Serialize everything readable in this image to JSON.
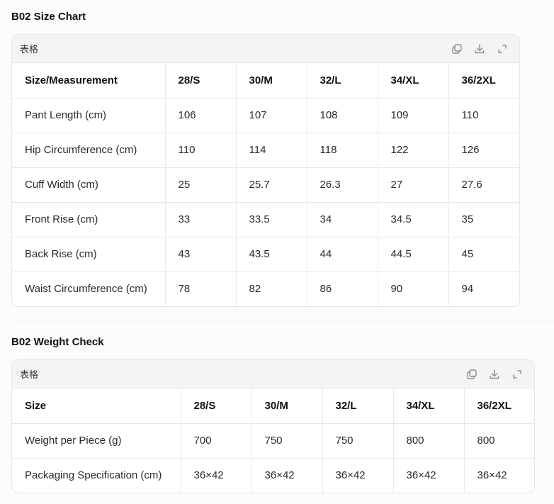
{
  "size_chart": {
    "title": "B02 Size Chart",
    "card_label": "表格",
    "headers": [
      "Size/Measurement",
      "28/S",
      "30/M",
      "32/L",
      "34/XL",
      "36/2XL"
    ],
    "rows": [
      [
        "Pant Length (cm)",
        "106",
        "107",
        "108",
        "109",
        "110"
      ],
      [
        "Hip Circumference (cm)",
        "110",
        "114",
        "118",
        "122",
        "126"
      ],
      [
        "Cuff Width (cm)",
        "25",
        "25.7",
        "26.3",
        "27",
        "27.6"
      ],
      [
        "Front Rise (cm)",
        "33",
        "33.5",
        "34",
        "34.5",
        "35"
      ],
      [
        "Back Rise (cm)",
        "43",
        "43.5",
        "44",
        "44.5",
        "45"
      ],
      [
        "Waist Circumference (cm)",
        "78",
        "82",
        "86",
        "90",
        "94"
      ]
    ]
  },
  "weight_check": {
    "title": "B02 Weight Check",
    "card_label": "表格",
    "headers": [
      "Size",
      "28/S",
      "30/M",
      "32/L",
      "34/XL",
      "36/2XL"
    ],
    "rows": [
      [
        "Weight per Piece (g)",
        "700",
        "750",
        "750",
        "800",
        "800"
      ],
      [
        "Packaging Specification (cm)",
        "36×42",
        "36×42",
        "36×42",
        "36×42",
        "36×42"
      ]
    ]
  },
  "icons": {
    "copy": "copy-icon",
    "download": "download-icon",
    "expand": "expand-icon"
  }
}
